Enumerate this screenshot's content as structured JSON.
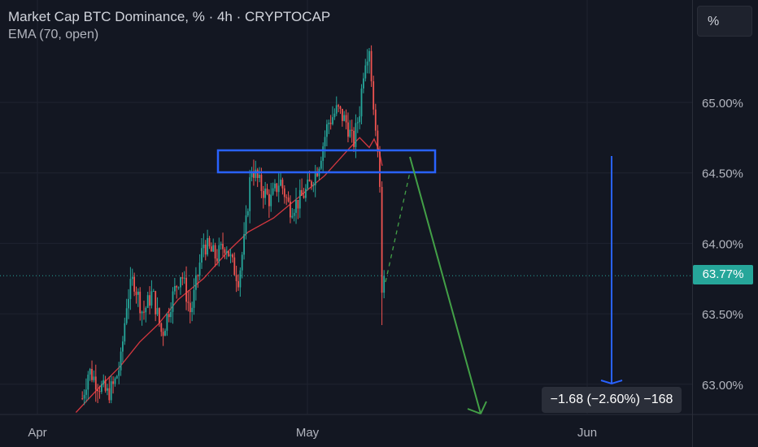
{
  "header": {
    "title": "Market Cap BTC Dominance, % · 4h · CRYPTOCAP",
    "indicator": "EMA (70, open)"
  },
  "unit_button": "%",
  "price_tag": "63.77%",
  "measure_label": "−1.68 (−2.60%) −168",
  "colors": {
    "background": "#131722",
    "up": "#26a69a",
    "down": "#ef5350",
    "ema": "#d4373f",
    "zone": "#2962ff",
    "projection": "#43a047",
    "measure_line": "#2962ff"
  },
  "chart_data": {
    "type": "candlestick",
    "title": "Market Cap BTC Dominance, % · 4h · CRYPTOCAP",
    "xlabel": "",
    "ylabel": "",
    "x_ticks": [
      "Apr",
      "May",
      "Jun"
    ],
    "y_ticks": [
      "63.00%",
      "63.50%",
      "64.00%",
      "64.50%",
      "65.00%"
    ],
    "ylim": [
      62.79,
      65.5
    ],
    "last_value": 63.77,
    "grid": true,
    "anchors": [
      {
        "t": 0.1,
        "v": 62.9
      },
      {
        "t": 0.12,
        "v": 63.1
      },
      {
        "t": 0.15,
        "v": 63.0
      },
      {
        "t": 0.18,
        "v": 62.93
      },
      {
        "t": 0.2,
        "v": 63.0
      },
      {
        "t": 0.22,
        "v": 63.15
      },
      {
        "t": 0.24,
        "v": 63.6
      },
      {
        "t": 0.26,
        "v": 63.75
      },
      {
        "t": 0.29,
        "v": 63.5
      },
      {
        "t": 0.32,
        "v": 63.65
      },
      {
        "t": 0.35,
        "v": 63.35
      },
      {
        "t": 0.38,
        "v": 63.6
      },
      {
        "t": 0.41,
        "v": 63.8
      },
      {
        "t": 0.44,
        "v": 63.5
      },
      {
        "t": 0.48,
        "v": 64.0
      },
      {
        "t": 0.52,
        "v": 63.9
      },
      {
        "t": 0.55,
        "v": 64.0
      },
      {
        "t": 0.57,
        "v": 63.85
      },
      {
        "t": 0.59,
        "v": 63.75
      },
      {
        "t": 0.61,
        "v": 64.05
      },
      {
        "t": 0.63,
        "v": 64.55
      },
      {
        "t": 0.66,
        "v": 64.4
      },
      {
        "t": 0.69,
        "v": 64.3
      },
      {
        "t": 0.72,
        "v": 64.45
      },
      {
        "t": 0.75,
        "v": 64.25
      },
      {
        "t": 0.78,
        "v": 64.3
      },
      {
        "t": 0.81,
        "v": 64.4
      },
      {
        "t": 0.84,
        "v": 64.55
      },
      {
        "t": 0.87,
        "v": 64.85
      },
      {
        "t": 0.9,
        "v": 64.95
      },
      {
        "t": 0.93,
        "v": 64.85
      },
      {
        "t": 0.95,
        "v": 64.7
      },
      {
        "t": 0.97,
        "v": 64.95
      },
      {
        "t": 0.985,
        "v": 65.3
      },
      {
        "t": 1.0,
        "v": 65.4
      }
    ],
    "after_peak": [
      65.15,
      64.95,
      64.8,
      64.65,
      64.4,
      63.65,
      63.77
    ],
    "ema_anchors": [
      {
        "t": 0.08,
        "v": 62.8
      },
      {
        "t": 0.15,
        "v": 62.97
      },
      {
        "t": 0.22,
        "v": 63.13
      },
      {
        "t": 0.28,
        "v": 63.3
      },
      {
        "t": 0.34,
        "v": 63.43
      },
      {
        "t": 0.4,
        "v": 63.6
      },
      {
        "t": 0.48,
        "v": 63.75
      },
      {
        "t": 0.56,
        "v": 63.95
      },
      {
        "t": 0.62,
        "v": 64.08
      },
      {
        "t": 0.7,
        "v": 64.18
      },
      {
        "t": 0.78,
        "v": 64.33
      },
      {
        "t": 0.86,
        "v": 64.48
      },
      {
        "t": 0.94,
        "v": 64.68
      },
      {
        "t": 0.97,
        "v": 64.75
      },
      {
        "t": 1.0,
        "v": 64.68
      }
    ]
  }
}
